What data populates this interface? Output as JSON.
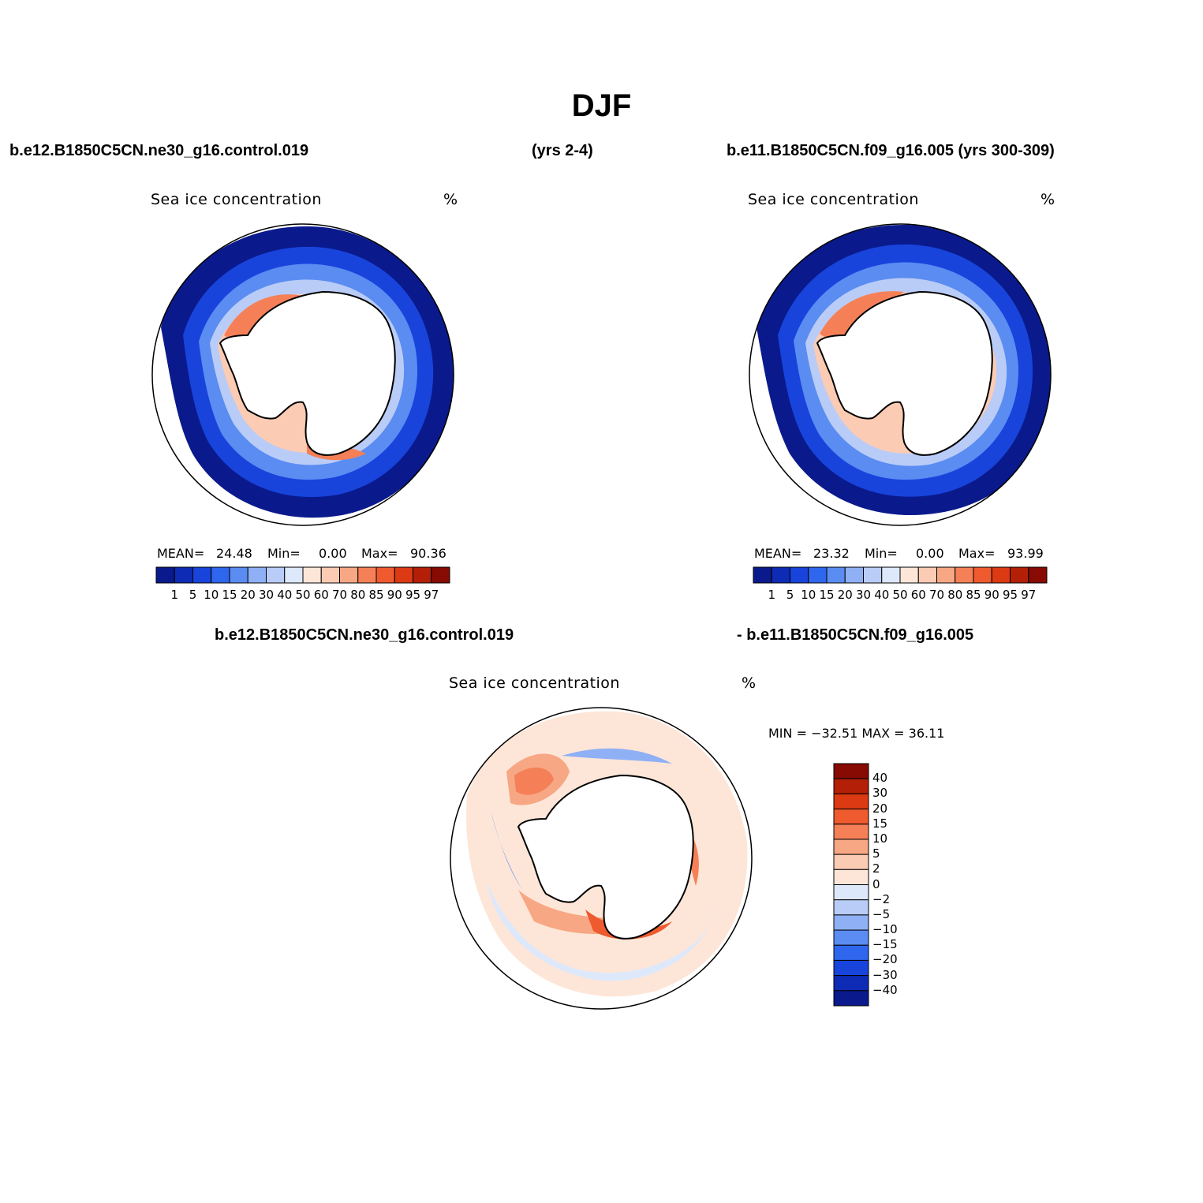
{
  "figure": {
    "title": "DJF",
    "case_a": "b.e12.B1850C5CN.ne30_g16.control.019",
    "case_a_years": "(yrs 2-4)",
    "case_b": "b.e11.B1850C5CN.f09_g16.005 (yrs 300-309)",
    "diff_case_a": "b.e12.B1850C5CN.ne30_g16.control.019",
    "diff_case_b": "- b.e11.B1850C5CN.f09_g16.005"
  },
  "panels": [
    {
      "name": "Sea ice concentration",
      "units": "%",
      "stats": {
        "mean_label": "MEAN=",
        "mean": "24.48",
        "min_label": "Min=",
        "min": "0.00",
        "max_label": "Max=",
        "max": "90.36"
      }
    },
    {
      "name": "Sea ice concentration",
      "units": "%",
      "stats": {
        "mean_label": "MEAN=",
        "mean": "23.32",
        "min_label": "Min=",
        "min": "0.00",
        "max_label": "Max=",
        "max": "93.99"
      }
    },
    {
      "name": "Sea ice concentration",
      "units": "%",
      "stats": {
        "text": "MIN = −32.51  MAX =   36.11"
      }
    }
  ],
  "colorbar_abs": {
    "labels": [
      "1",
      "5",
      "10",
      "15",
      "20",
      "30",
      "40",
      "50",
      "60",
      "70",
      "80",
      "85",
      "90",
      "95",
      "97"
    ],
    "colors": [
      "#0a1a8c",
      "#0d2bb5",
      "#1844dc",
      "#2f66ee",
      "#5a8cf2",
      "#8fb0f5",
      "#b9ccf7",
      "#dde8fb",
      "#fde6d8",
      "#fbcbb3",
      "#f7a783",
      "#f58058",
      "#ef5a2e",
      "#db3a12",
      "#b41f08",
      "#870a03"
    ]
  },
  "colorbar_diff": {
    "labels": [
      "40",
      "30",
      "20",
      "15",
      "10",
      "5",
      "2",
      "0",
      "−2",
      "−5",
      "−10",
      "−15",
      "−20",
      "−30",
      "−40"
    ],
    "colors": [
      "#870a03",
      "#b41f08",
      "#db3a12",
      "#ef5a2e",
      "#f58058",
      "#f7a783",
      "#fbcbb3",
      "#fde6d8",
      "#dde8fb",
      "#b9ccf7",
      "#8fb0f5",
      "#5a8cf2",
      "#2f66ee",
      "#1844dc",
      "#0d2bb5",
      "#0a1a8c"
    ]
  },
  "legend_colors": {
    "blue_dark": "#0a1a8c",
    "red_dark": "#870a03",
    "neutral": "#ffffff"
  }
}
